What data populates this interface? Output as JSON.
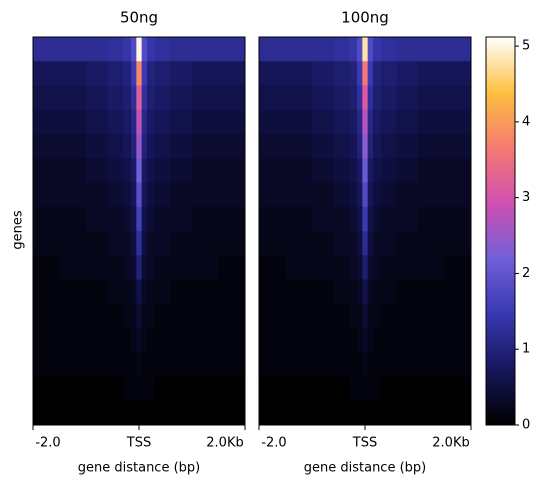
{
  "chart_data": {
    "type": "heatmap",
    "ylabel": "genes",
    "xlabel": "gene distance (bp)",
    "xlim": [
      -2000,
      2000
    ],
    "xticks": [
      {
        "value": -2000,
        "label": "-2.0"
      },
      {
        "value": 0,
        "label": "TSS"
      },
      {
        "value": 2000,
        "label": "2.0Kb"
      }
    ],
    "x_edges": [
      -2000,
      -1500,
      -1000,
      -600,
      -300,
      -150,
      -50,
      50,
      150,
      300,
      600,
      1000,
      1500,
      2000
    ],
    "clim": [
      0,
      5.12
    ],
    "colorbar_ticks": [
      0,
      1,
      2,
      3,
      4,
      5
    ],
    "colormap": [
      "#000000",
      "#16165c",
      "#3838b0",
      "#7060d8",
      "#d050b0",
      "#f57a70",
      "#fdc040",
      "#ffffff"
    ],
    "panels": [
      {
        "title": "50ng",
        "values": [
          [
            1.2,
            1.2,
            1.2,
            1.3,
            1.4,
            1.8,
            5.0,
            1.8,
            1.4,
            1.3,
            1.2,
            1.2,
            1.2
          ],
          [
            0.7,
            0.7,
            0.8,
            0.9,
            1.0,
            1.5,
            3.8,
            1.5,
            1.0,
            0.9,
            0.8,
            0.7,
            0.7
          ],
          [
            0.6,
            0.6,
            0.7,
            0.8,
            0.9,
            1.3,
            3.2,
            1.3,
            0.9,
            0.8,
            0.7,
            0.6,
            0.6
          ],
          [
            0.5,
            0.5,
            0.6,
            0.7,
            0.8,
            1.1,
            2.8,
            1.1,
            0.8,
            0.7,
            0.6,
            0.5,
            0.5
          ],
          [
            0.4,
            0.4,
            0.5,
            0.6,
            0.7,
            1.0,
            2.5,
            1.0,
            0.7,
            0.6,
            0.5,
            0.4,
            0.4
          ],
          [
            0.3,
            0.3,
            0.4,
            0.5,
            0.6,
            0.8,
            2.2,
            0.8,
            0.6,
            0.5,
            0.4,
            0.3,
            0.3
          ],
          [
            0.3,
            0.3,
            0.3,
            0.4,
            0.5,
            0.7,
            1.9,
            0.7,
            0.5,
            0.4,
            0.3,
            0.3,
            0.3
          ],
          [
            0.2,
            0.2,
            0.3,
            0.3,
            0.4,
            0.6,
            1.6,
            0.6,
            0.4,
            0.3,
            0.3,
            0.2,
            0.2
          ],
          [
            0.2,
            0.2,
            0.2,
            0.3,
            0.3,
            0.5,
            1.3,
            0.5,
            0.3,
            0.3,
            0.2,
            0.2,
            0.2
          ],
          [
            0.1,
            0.2,
            0.2,
            0.2,
            0.3,
            0.4,
            1.0,
            0.4,
            0.3,
            0.2,
            0.2,
            0.2,
            0.1
          ],
          [
            0.1,
            0.1,
            0.1,
            0.2,
            0.2,
            0.3,
            0.6,
            0.3,
            0.2,
            0.2,
            0.1,
            0.1,
            0.1
          ],
          [
            0.1,
            0.1,
            0.1,
            0.1,
            0.2,
            0.2,
            0.4,
            0.2,
            0.2,
            0.1,
            0.1,
            0.1,
            0.1
          ],
          [
            0.1,
            0.1,
            0.1,
            0.1,
            0.1,
            0.2,
            0.3,
            0.2,
            0.1,
            0.1,
            0.1,
            0.1,
            0.1
          ],
          [
            0.1,
            0.1,
            0.1,
            0.1,
            0.1,
            0.1,
            0.2,
            0.1,
            0.1,
            0.1,
            0.1,
            0.1,
            0.1
          ],
          [
            0.0,
            0.0,
            0.0,
            0.0,
            0.1,
            0.1,
            0.1,
            0.1,
            0.1,
            0.0,
            0.0,
            0.0,
            0.0
          ],
          [
            0.0,
            0.0,
            0.0,
            0.0,
            0.0,
            0.0,
            0.0,
            0.0,
            0.0,
            0.0,
            0.0,
            0.0,
            0.0
          ]
        ]
      },
      {
        "title": "100ng",
        "values": [
          [
            1.2,
            1.2,
            1.2,
            1.3,
            1.4,
            1.8,
            4.8,
            1.8,
            1.4,
            1.3,
            1.2,
            1.2,
            1.2
          ],
          [
            0.7,
            0.7,
            0.8,
            0.9,
            1.0,
            1.5,
            3.6,
            1.5,
            1.0,
            0.9,
            0.8,
            0.7,
            0.7
          ],
          [
            0.6,
            0.6,
            0.7,
            0.8,
            0.9,
            1.3,
            3.1,
            1.3,
            0.9,
            0.8,
            0.7,
            0.6,
            0.6
          ],
          [
            0.5,
            0.5,
            0.6,
            0.7,
            0.8,
            1.1,
            2.7,
            1.1,
            0.8,
            0.7,
            0.6,
            0.5,
            0.5
          ],
          [
            0.4,
            0.4,
            0.5,
            0.6,
            0.7,
            1.0,
            2.4,
            1.0,
            0.7,
            0.6,
            0.5,
            0.4,
            0.4
          ],
          [
            0.3,
            0.3,
            0.4,
            0.5,
            0.6,
            0.8,
            2.1,
            0.8,
            0.6,
            0.5,
            0.4,
            0.3,
            0.3
          ],
          [
            0.3,
            0.3,
            0.3,
            0.4,
            0.5,
            0.7,
            1.8,
            0.7,
            0.5,
            0.4,
            0.3,
            0.3,
            0.3
          ],
          [
            0.2,
            0.2,
            0.3,
            0.3,
            0.4,
            0.6,
            1.5,
            0.6,
            0.4,
            0.3,
            0.3,
            0.2,
            0.2
          ],
          [
            0.2,
            0.2,
            0.2,
            0.3,
            0.3,
            0.5,
            1.2,
            0.5,
            0.3,
            0.3,
            0.2,
            0.2,
            0.2
          ],
          [
            0.1,
            0.2,
            0.2,
            0.2,
            0.3,
            0.4,
            0.9,
            0.4,
            0.3,
            0.2,
            0.2,
            0.2,
            0.1
          ],
          [
            0.1,
            0.1,
            0.1,
            0.2,
            0.2,
            0.3,
            0.6,
            0.3,
            0.2,
            0.2,
            0.1,
            0.1,
            0.1
          ],
          [
            0.1,
            0.1,
            0.1,
            0.1,
            0.2,
            0.2,
            0.4,
            0.2,
            0.2,
            0.1,
            0.1,
            0.1,
            0.1
          ],
          [
            0.1,
            0.1,
            0.1,
            0.1,
            0.1,
            0.2,
            0.3,
            0.2,
            0.1,
            0.1,
            0.1,
            0.1,
            0.1
          ],
          [
            0.1,
            0.1,
            0.1,
            0.1,
            0.1,
            0.1,
            0.2,
            0.1,
            0.1,
            0.1,
            0.1,
            0.1,
            0.1
          ],
          [
            0.0,
            0.0,
            0.0,
            0.0,
            0.1,
            0.1,
            0.1,
            0.1,
            0.1,
            0.0,
            0.0,
            0.0,
            0.0
          ],
          [
            0.0,
            0.0,
            0.0,
            0.0,
            0.0,
            0.0,
            0.0,
            0.0,
            0.0,
            0.0,
            0.0,
            0.0,
            0.0
          ]
        ]
      }
    ]
  }
}
